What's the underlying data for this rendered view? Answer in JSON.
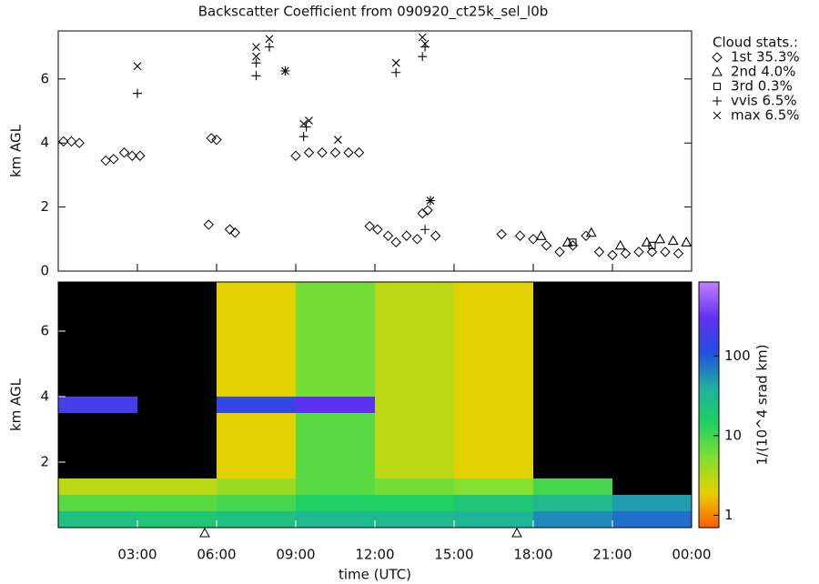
{
  "chart_data": [
    {
      "type": "scatter",
      "title": "Backscatter Coefficient from 090920_ct25k_sel_l0b",
      "ylabel": "km AGL",
      "legend_title": "Cloud stats.:",
      "legend": "upper-right-outside",
      "xlim": [
        0,
        24
      ],
      "ylim": [
        0,
        7.5
      ],
      "yticks": [
        0,
        2,
        4,
        6
      ],
      "series": [
        {
          "name": "1st 35.3%",
          "marker": "diamond",
          "color": "#000000",
          "x": [
            0.2,
            0.5,
            0.8,
            1.8,
            2.1,
            2.5,
            2.8,
            3.1,
            5.7,
            5.8,
            6.0,
            6.5,
            6.7,
            9.0,
            9.5,
            10.0,
            10.5,
            11.0,
            11.4,
            11.8,
            12.1,
            12.5,
            12.8,
            13.2,
            13.6,
            13.8,
            14.0,
            14.3,
            16.8,
            17.5,
            18.0,
            18.5,
            19.0,
            19.5,
            20.0,
            20.5,
            21.0,
            21.5,
            22.0,
            22.5,
            23.0,
            23.5
          ],
          "y": [
            4.05,
            4.05,
            4.0,
            3.45,
            3.5,
            3.7,
            3.6,
            3.6,
            1.45,
            4.15,
            4.1,
            1.3,
            1.2,
            3.6,
            3.7,
            3.7,
            3.7,
            3.7,
            3.7,
            1.4,
            1.3,
            1.1,
            0.9,
            1.1,
            1.0,
            1.8,
            1.9,
            1.1,
            1.15,
            1.1,
            1.0,
            0.8,
            0.6,
            0.8,
            1.1,
            0.6,
            0.5,
            0.55,
            0.6,
            0.6,
            0.6,
            0.55
          ]
        },
        {
          "name": "2nd 4.0%",
          "marker": "triangle",
          "color": "#000000",
          "x": [
            18.3,
            19.3,
            20.2,
            21.3,
            22.3,
            22.8,
            23.3,
            23.8
          ],
          "y": [
            1.1,
            0.9,
            1.2,
            0.8,
            0.9,
            1.0,
            0.95,
            0.9
          ]
        },
        {
          "name": "3rd 0.3%",
          "marker": "square",
          "color": "#000000",
          "x": [
            19.5,
            22.5
          ],
          "y": [
            0.9,
            0.8
          ]
        },
        {
          "name": "vvis 6.5%",
          "marker": "plus",
          "color": "#000000",
          "x": [
            3.0,
            7.5,
            7.5,
            8.0,
            8.6,
            9.3,
            9.4,
            12.8,
            13.8,
            13.9,
            14.1,
            13.9
          ],
          "y": [
            5.55,
            6.1,
            6.5,
            7.0,
            6.25,
            4.2,
            4.5,
            6.2,
            6.7,
            7.0,
            2.2,
            1.3
          ]
        },
        {
          "name": "max 6.5%",
          "marker": "cross",
          "color": "#000000",
          "x": [
            3.0,
            7.5,
            7.5,
            8.0,
            8.6,
            9.3,
            9.5,
            10.6,
            12.8,
            13.8,
            13.9,
            14.1
          ],
          "y": [
            6.4,
            7.0,
            6.7,
            7.25,
            6.25,
            4.6,
            4.7,
            4.1,
            6.5,
            7.3,
            7.1,
            2.2
          ]
        }
      ]
    },
    {
      "type": "heatmap",
      "ylabel": "km AGL",
      "xlabel": "time (UTC)",
      "colorbar_label": "1/(10^4 srad km)",
      "xlim": [
        0,
        24
      ],
      "ylim": [
        0,
        7.5
      ],
      "yticks": [
        2,
        4,
        6
      ],
      "xticks": [
        {
          "value": 3,
          "label": "03:00"
        },
        {
          "value": 6,
          "label": "06:00"
        },
        {
          "value": 9,
          "label": "09:00"
        },
        {
          "value": 12,
          "label": "12:00"
        },
        {
          "value": 15,
          "label": "15:00"
        },
        {
          "value": 18,
          "label": "18:00"
        },
        {
          "value": 21,
          "label": "21:00"
        },
        {
          "value": 24,
          "label": "00:00"
        }
      ],
      "x_edges": [
        0,
        3,
        6,
        9,
        12,
        15,
        18,
        21,
        24
      ],
      "y_edges": [
        0,
        0.5,
        1.0,
        1.5,
        3.5,
        4.0,
        7.5
      ],
      "z": [
        [
          25,
          20,
          25,
          30,
          30,
          35,
          60,
          80
        ],
        [
          8,
          8,
          10,
          15,
          15,
          20,
          30,
          50
        ],
        [
          3,
          3,
          4,
          8,
          6,
          5,
          10,
          null
        ],
        [
          null,
          null,
          2,
          8,
          3,
          2,
          null,
          null
        ],
        [
          200,
          null,
          150,
          300,
          3,
          2,
          null,
          null
        ],
        [
          null,
          null,
          2,
          6,
          3,
          2,
          null,
          null
        ]
      ],
      "zlim": [
        0.7,
        850
      ],
      "zticks": [
        1,
        10,
        100
      ],
      "log_color": true,
      "colormap": [
        "#ff5a00",
        "#e8d000",
        "#80e030",
        "#20d060",
        "#20b0a0",
        "#2050e0",
        "#6030f0",
        "#c080ff"
      ]
    }
  ]
}
